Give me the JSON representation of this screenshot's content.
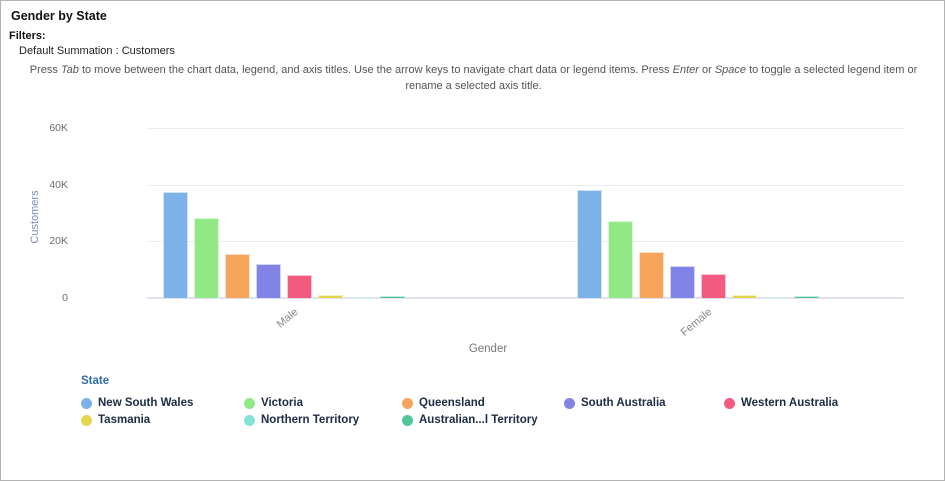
{
  "page": {
    "title": "Gender by State",
    "filters_label": "Filters:",
    "filter_value": "Default Summation : Customers",
    "instructions": {
      "p1": "Press ",
      "i1": "Tab",
      "p2": " to move between the chart data, legend, and axis titles. Use the arrow keys to navigate chart data or legend items. Press ",
      "i2": "Enter",
      "p3": " or ",
      "i3": "Space",
      "p4": " to toggle a selected legend item or rename a selected axis title."
    }
  },
  "chart_data": {
    "type": "bar",
    "title": "Gender by State",
    "categories": [
      "Male",
      "Female"
    ],
    "xlabel": "Gender",
    "ylabel": "Customers",
    "ylim": [
      0,
      60000
    ],
    "yticks": [
      {
        "label": "0",
        "value": 0
      },
      {
        "label": "20K",
        "value": 20000
      },
      {
        "label": "40K",
        "value": 40000
      },
      {
        "label": "60K",
        "value": 60000
      }
    ],
    "grid": true,
    "legend_title": "State",
    "legend_position": "bottom",
    "series": [
      {
        "name": "New South Wales",
        "color": "#7CB2E8",
        "values": [
          37500,
          38000
        ]
      },
      {
        "name": "Victoria",
        "color": "#90E984",
        "values": [
          28300,
          27200
        ]
      },
      {
        "name": "Queensland",
        "color": "#F5A45C",
        "values": [
          15700,
          16200
        ]
      },
      {
        "name": "South Australia",
        "color": "#8183E6",
        "values": [
          12000,
          11400
        ]
      },
      {
        "name": "Western Australia",
        "color": "#F25A80",
        "values": [
          8200,
          8400
        ]
      },
      {
        "name": "Tasmania",
        "color": "#E6D54F",
        "values": [
          1200,
          1100
        ]
      },
      {
        "name": "Northern Territory",
        "color": "#85E2D4",
        "values": [
          150,
          150
        ]
      },
      {
        "name": "Australian...l Territory",
        "color": "#52C697",
        "values": [
          800,
          800
        ]
      }
    ]
  }
}
